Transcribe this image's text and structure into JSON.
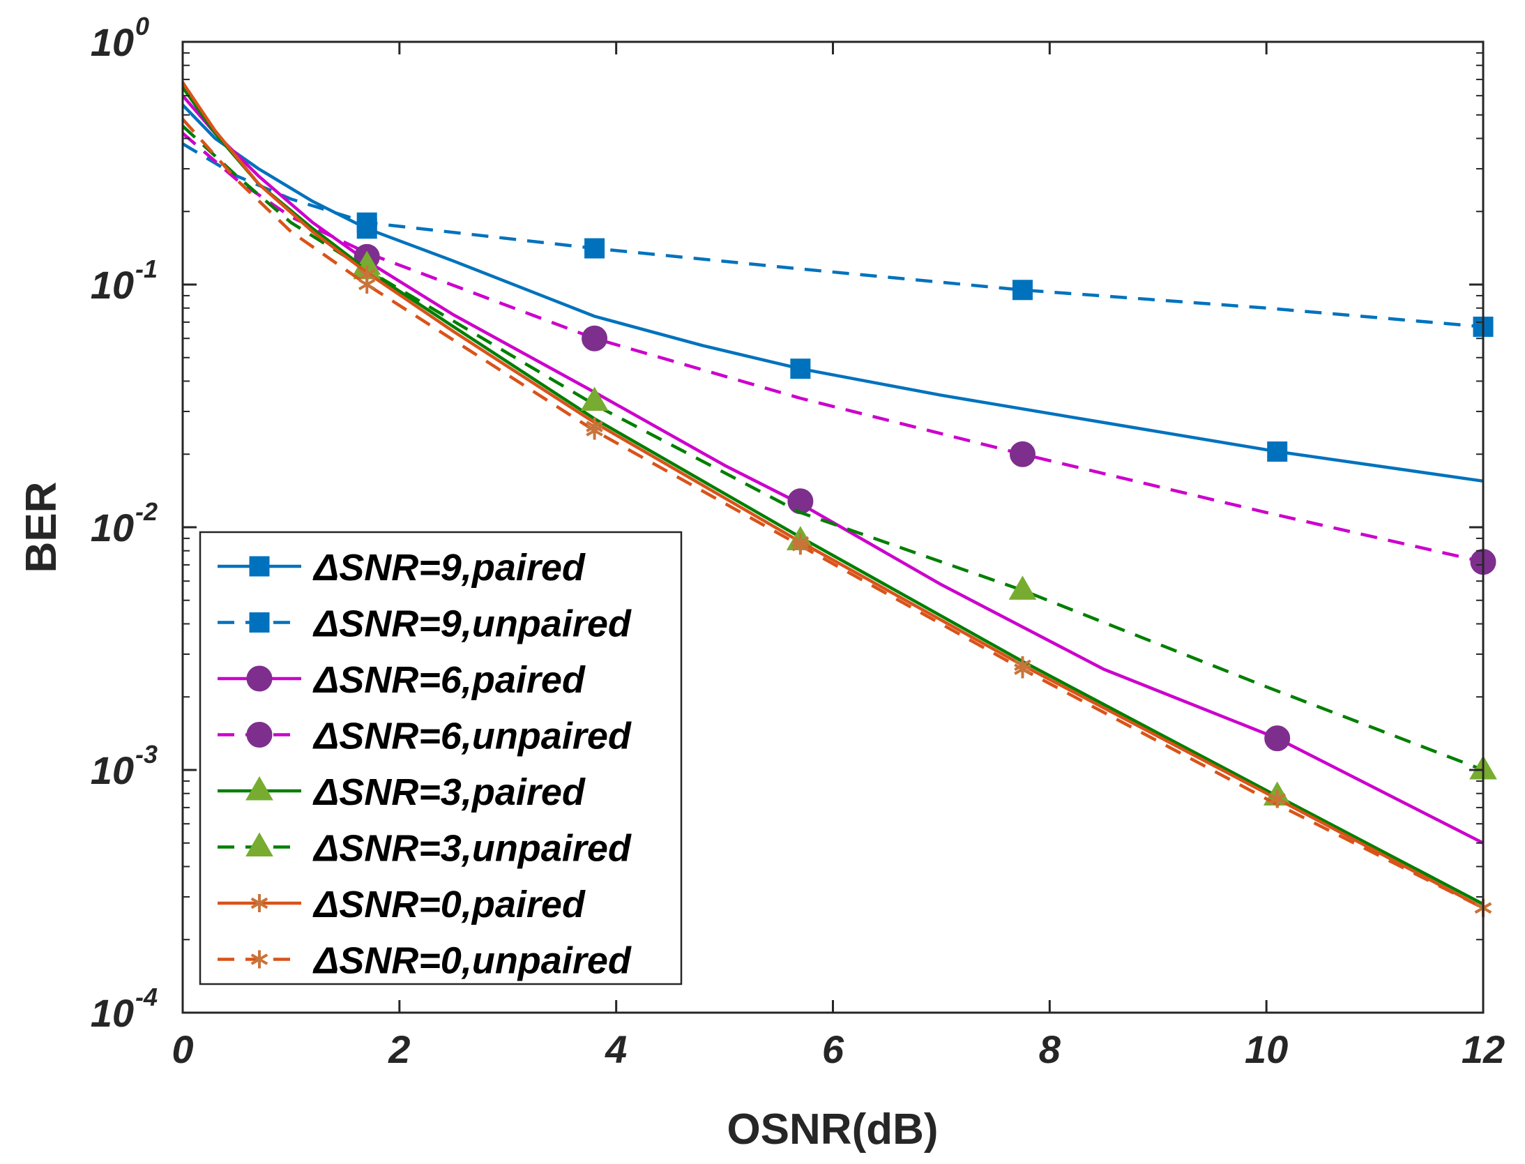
{
  "chart_data": {
    "type": "line",
    "title": "",
    "xlabel": "OSNR(dB)",
    "ylabel": "BER",
    "yscale": "log",
    "xlim": [
      0,
      12
    ],
    "ylim": [
      0.0001,
      1
    ],
    "grid": false,
    "legend_position": "bottom-left",
    "x_ticks": [
      {
        "value": 0,
        "label": "0"
      },
      {
        "value": 2,
        "label": "2"
      },
      {
        "value": 4,
        "label": "4"
      },
      {
        "value": 6,
        "label": "6"
      },
      {
        "value": 8,
        "label": "8"
      },
      {
        "value": 10,
        "label": "10"
      },
      {
        "value": 12,
        "label": "12"
      }
    ],
    "y_ticks": [
      {
        "value": 1,
        "base": "10",
        "exp": "0"
      },
      {
        "value": 0.1,
        "base": "10",
        "exp": "-1"
      },
      {
        "value": 0.01,
        "base": "10",
        "exp": "-2"
      },
      {
        "value": 0.001,
        "base": "10",
        "exp": "-3"
      },
      {
        "value": 0.0001,
        "base": "10",
        "exp": "-4"
      }
    ],
    "series": [
      {
        "name": "ΔSNR=9,paired",
        "color": "#0072BD",
        "marker_color": "#0072BD",
        "dash": "solid",
        "marker": "square",
        "x": [
          0,
          0.3,
          0.7,
          1.2,
          1.7,
          2.5,
          3.8,
          4.8,
          5.7,
          7.0,
          8.5,
          10.1,
          12.0
        ],
        "y": [
          0.55,
          0.4,
          0.3,
          0.22,
          0.17,
          0.125,
          0.074,
          0.056,
          0.045,
          0.035,
          0.027,
          0.0205,
          0.0155
        ],
        "marker_x": [
          1.7,
          5.7,
          10.1
        ],
        "marker_y": [
          0.17,
          0.045,
          0.0205
        ]
      },
      {
        "name": "ΔSNR=9,unpaired",
        "color": "#0072BD",
        "marker_color": "#0072BD",
        "dash": "dashed",
        "marker": "square",
        "x": [
          0,
          0.5,
          1.0,
          1.7,
          3.8,
          5.7,
          7.75,
          10.0,
          12.0
        ],
        "y": [
          0.38,
          0.28,
          0.225,
          0.18,
          0.141,
          0.116,
          0.095,
          0.08,
          0.067
        ],
        "marker_x": [
          1.7,
          3.8,
          7.75,
          12.0
        ],
        "marker_y": [
          0.18,
          0.141,
          0.095,
          0.067
        ]
      },
      {
        "name": "ΔSNR=6,paired",
        "color": "#CC00CC",
        "marker_color": "#7E2F8E",
        "dash": "solid",
        "marker": "circle",
        "x": [
          0,
          0.3,
          0.7,
          1.2,
          1.7,
          2.5,
          3.8,
          5.0,
          5.7,
          7.0,
          8.5,
          10.1,
          12.0
        ],
        "y": [
          0.6,
          0.42,
          0.28,
          0.18,
          0.125,
          0.075,
          0.036,
          0.018,
          0.0125,
          0.0058,
          0.0026,
          0.00135,
          0.0005
        ],
        "marker_x": [
          1.7,
          5.7,
          10.1
        ],
        "marker_y": [
          0.13,
          0.0128,
          0.00135
        ]
      },
      {
        "name": "ΔSNR=6,unpaired",
        "color": "#CC00CC",
        "marker_color": "#7E2F8E",
        "dash": "dashed",
        "marker": "circle",
        "x": [
          0,
          0.5,
          1.0,
          1.7,
          3.8,
          5.7,
          7.75,
          10.0,
          12.0
        ],
        "y": [
          0.42,
          0.27,
          0.19,
          0.135,
          0.06,
          0.034,
          0.02,
          0.0115,
          0.0072
        ],
        "marker_x": [
          1.7,
          3.8,
          7.75,
          12.0
        ],
        "marker_y": [
          0.13,
          0.06,
          0.02,
          0.0072
        ]
      },
      {
        "name": "ΔSNR=3,paired",
        "color": "#007F00",
        "marker_color": "#77AC30",
        "dash": "solid",
        "marker": "triangle",
        "x": [
          0,
          0.3,
          0.7,
          1.2,
          1.7,
          2.5,
          3.8,
          5.7,
          7.75,
          10.1,
          12.0
        ],
        "y": [
          0.65,
          0.42,
          0.26,
          0.17,
          0.115,
          0.067,
          0.028,
          0.0091,
          0.0028,
          0.00078,
          0.00028
        ],
        "marker_x": [
          1.7,
          5.7,
          10.1
        ],
        "marker_y": [
          0.12,
          0.0088,
          0.00078
        ]
      },
      {
        "name": "ΔSNR=3,unpaired",
        "color": "#007F00",
        "marker_color": "#77AC30",
        "dash": "dashed",
        "marker": "triangle",
        "x": [
          0,
          0.5,
          1.0,
          1.7,
          3.8,
          5.7,
          7.75,
          10.0,
          12.0
        ],
        "y": [
          0.45,
          0.28,
          0.18,
          0.115,
          0.032,
          0.0115,
          0.0055,
          0.0022,
          0.001
        ],
        "marker_x": [
          1.7,
          3.8,
          5.7,
          7.75,
          12.0
        ],
        "marker_y": [
          0.115,
          0.033,
          0.0088,
          0.0055,
          0.001
        ]
      },
      {
        "name": "ΔSNR=0,paired",
        "color": "#D95319",
        "marker_color": "#C8743A",
        "dash": "solid",
        "marker": "star",
        "x": [
          0,
          0.3,
          0.7,
          1.2,
          1.7,
          2.5,
          3.8,
          5.7,
          7.75,
          10.1,
          12.0
        ],
        "y": [
          0.68,
          0.43,
          0.26,
          0.165,
          0.112,
          0.064,
          0.027,
          0.0087,
          0.0027,
          0.00076,
          0.00027
        ],
        "marker_x": [
          1.7,
          3.8,
          5.7,
          7.75,
          10.1,
          12.0
        ],
        "marker_y": [
          0.11,
          0.026,
          0.0087,
          0.0027,
          0.00076,
          0.00027
        ]
      },
      {
        "name": "ΔSNR=0,unpaired",
        "color": "#D95319",
        "marker_color": "#C8743A",
        "dash": "dashed",
        "marker": "star",
        "x": [
          0,
          0.5,
          1.0,
          1.7,
          3.8,
          5.7,
          7.75,
          10.0,
          12.0
        ],
        "y": [
          0.48,
          0.27,
          0.165,
          0.1,
          0.025,
          0.0084,
          0.0026,
          0.00076,
          0.00027
        ],
        "marker_x": [
          1.7,
          3.8,
          5.7,
          7.75,
          10.1,
          12.0
        ],
        "marker_y": [
          0.1,
          0.025,
          0.0084,
          0.0026,
          0.00076,
          0.00027
        ]
      }
    ]
  }
}
